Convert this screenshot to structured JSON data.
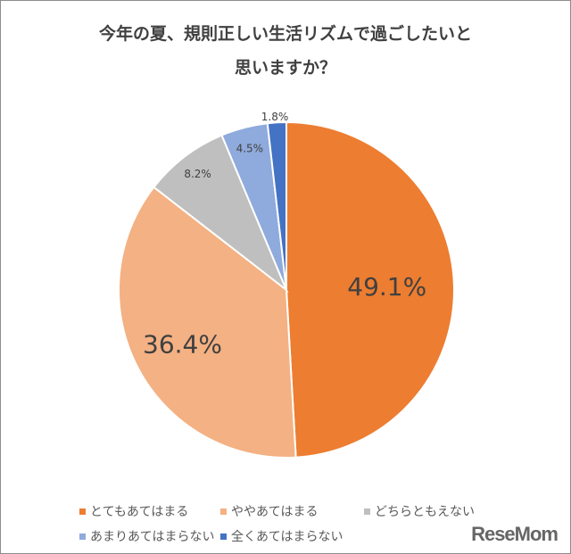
{
  "chart_data": {
    "type": "pie",
    "title_lines": [
      "今年の夏、規則正しい生活リズムで過ごしたいと",
      "思いますか？"
    ],
    "categories": [
      "とてもあてはまる",
      "ややあてはまる",
      "どちらともえない",
      "あまりあてはまらない",
      "全くあてはまらない"
    ],
    "values": [
      49.1,
      36.4,
      8.2,
      4.5,
      1.8
    ],
    "labels": [
      "49.1%",
      "36.4%",
      "8.2%",
      "4.5%",
      "1.8%"
    ],
    "colors": [
      "#ed7d31",
      "#f4b183",
      "#bfbfbf",
      "#8faadc",
      "#4472c4"
    ],
    "legend_position": "bottom"
  },
  "logo": "ReseMom"
}
